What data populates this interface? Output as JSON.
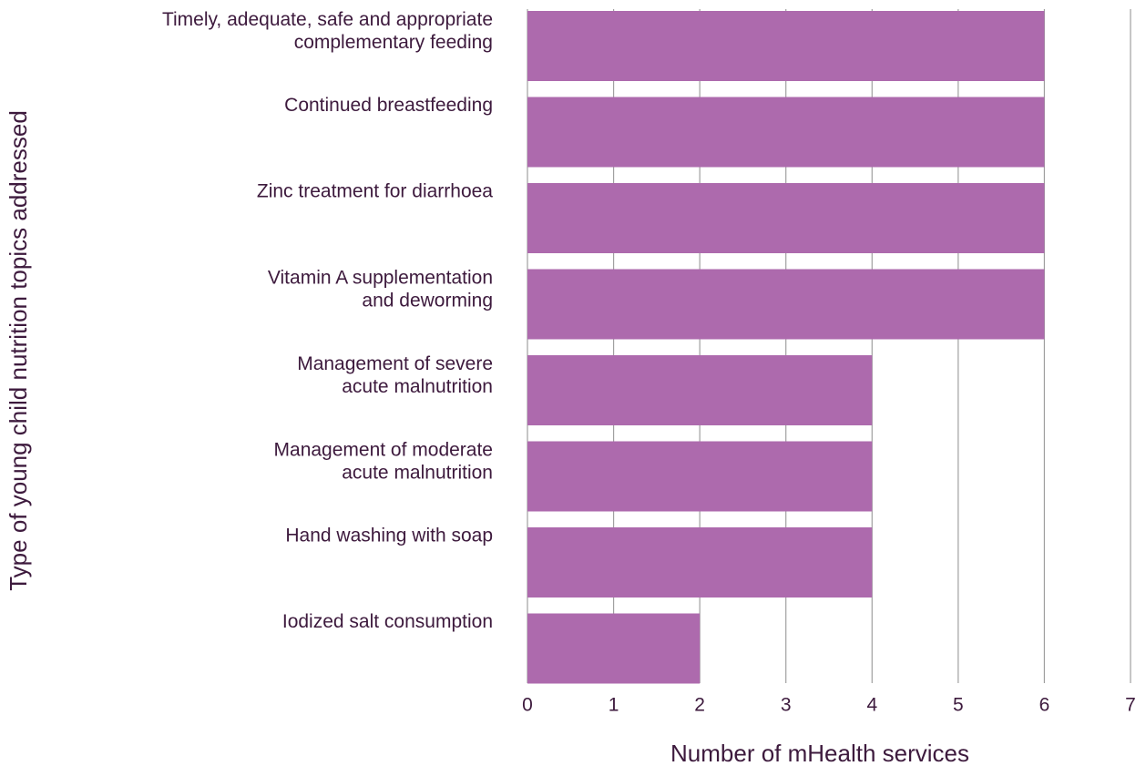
{
  "chart_data": {
    "type": "bar",
    "orientation": "horizontal",
    "xlabel": "Number of mHealth services",
    "ylabel": "Type of young child nutrition topics addressed",
    "categories": [
      "Timely, adequate, safe and appropriate\ncomplementary feeding",
      "Continued breastfeeding",
      "Zinc treatment for diarrhoea",
      "Vitamin A supplementation\nand deworming",
      "Management of severe\nacute malnutrition",
      "Management of moderate\nacute malnutrition",
      "Hand washing with soap",
      "Iodized salt consumption"
    ],
    "values": [
      6,
      6,
      6,
      6,
      4,
      4,
      4,
      2
    ],
    "color": "#ad6aad",
    "xlim": [
      0,
      7
    ],
    "xticks": [
      0,
      1,
      2,
      3,
      4,
      5,
      6,
      7
    ],
    "grid": true
  }
}
